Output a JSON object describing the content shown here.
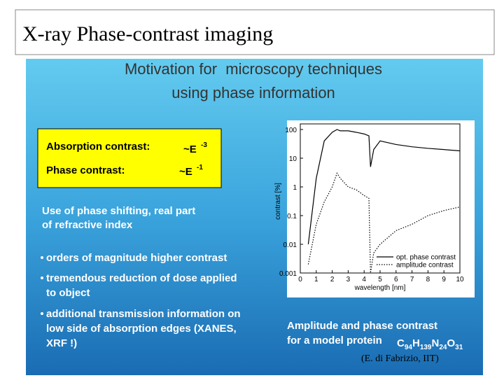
{
  "slide": {
    "title": "X-ray Phase-contrast imaging",
    "heading": [
      "Motivation for  microscopy techniques",
      "using phase information"
    ],
    "box": [
      {
        "label": "Absorption contrast:",
        "base": "~E",
        "exp": "-3"
      },
      {
        "label": "Phase contrast:",
        "base": "~E",
        "exp": "-1"
      }
    ],
    "intro": [
      "Use of phase shifting, real part",
      "of refractive index"
    ],
    "bullets": [
      [
        "orders of magnitude higher contrast"
      ],
      [
        "tremendous reduction of dose applied",
        "to object"
      ],
      [
        "additional transmission information on",
        "low side of absorption edges (XANES,",
        "XRF !)"
      ]
    ],
    "caption": {
      "line1": "Amplitude and phase contrast",
      "line2": "for a model protein",
      "formula": [
        "C",
        "94",
        "H",
        "139",
        "N",
        "24",
        "O",
        "31"
      ]
    },
    "credit": "(E. di Fabrizio, IIT)"
  },
  "chart_data": {
    "type": "line",
    "x_label": "wavelength [nm]",
    "y_label": "contrast [%]",
    "x": [
      0.5,
      1,
      1.5,
      2,
      2.3,
      2.5,
      3,
      3.5,
      4,
      4.3,
      4.4,
      4.6,
      5,
      6,
      7,
      8,
      9,
      10
    ],
    "series": [
      {
        "name": "opt. phase contrast",
        "color": "#000000",
        "style": "solid",
        "values": [
          0.01,
          2,
          40,
          80,
          100,
          90,
          90,
          80,
          70,
          60,
          5,
          20,
          40,
          30,
          25,
          22,
          20,
          18
        ]
      },
      {
        "name": "amplitude contrast",
        "color": "#000000",
        "style": "dotted",
        "values": [
          0.002,
          0.05,
          0.3,
          1,
          3,
          2,
          1,
          0.8,
          0.5,
          0.4,
          0.001,
          0.005,
          0.01,
          0.03,
          0.05,
          0.1,
          0.15,
          0.2
        ]
      }
    ],
    "xlim": [
      0,
      10
    ],
    "ylim": [
      0.001,
      100
    ],
    "xticks": [
      0,
      1,
      2,
      3,
      4,
      5,
      6,
      7,
      8,
      9,
      10
    ],
    "yticks": [
      100,
      10,
      1,
      0.1,
      0.01,
      0.001
    ],
    "log_y": true
  }
}
